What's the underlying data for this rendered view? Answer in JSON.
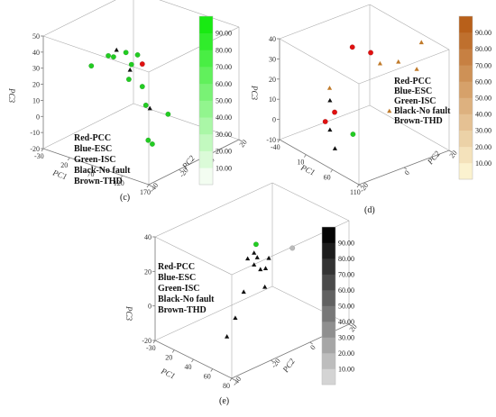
{
  "chart_data": [
    {
      "type": "scatter",
      "panel_label": "(c)",
      "axes": {
        "x_label": "PC1",
        "y_label": "PC2",
        "z_label": "PC3"
      },
      "x_ticks": [
        "-30",
        "20",
        "70",
        "120",
        "170"
      ],
      "y_ticks": [
        "-40",
        "-20",
        "0",
        "20"
      ],
      "z_ticks": [
        "-20",
        "-10",
        "0",
        "10",
        "20",
        "30",
        "40",
        "50"
      ],
      "colorbar": {
        "ticks": [
          "10.00",
          "20.00",
          "30.00",
          "40.00",
          "50.00",
          "60.00",
          "70.00",
          "80.00",
          "90.00"
        ],
        "low": "#f3fdf1",
        "high": "#18ea12"
      },
      "legend": [
        "Red-PCC",
        "Blue-ESC",
        "Green-ISC",
        "Black-No fault",
        "Brown-THD"
      ],
      "points": [
        {
          "x": 60,
          "y": -20,
          "z": 48,
          "c": "black",
          "m": "tri"
        },
        {
          "x": 90,
          "y": -25,
          "z": 52,
          "c": "green",
          "m": "dot"
        },
        {
          "x": 95,
          "y": -18,
          "z": 48,
          "c": "green",
          "m": "dot"
        },
        {
          "x": 110,
          "y": -30,
          "z": 45,
          "c": "black",
          "m": "tri"
        },
        {
          "x": 120,
          "y": -35,
          "z": 42,
          "c": "green",
          "m": "dot"
        },
        {
          "x": 20,
          "y": -10,
          "z": 35,
          "c": "green",
          "m": "dot"
        },
        {
          "x": 25,
          "y": -8,
          "z": 34,
          "c": "green",
          "m": "dot"
        },
        {
          "x": 60,
          "y": 0,
          "z": 30,
          "c": "red",
          "m": "dot"
        },
        {
          "x": 0,
          "y": -15,
          "z": 28,
          "c": "green",
          "m": "dot"
        },
        {
          "x": 15,
          "y": 10,
          "z": 20,
          "c": "green",
          "m": "dot"
        },
        {
          "x": 140,
          "y": -30,
          "z": 25,
          "c": "green",
          "m": "dot"
        },
        {
          "x": 60,
          "y": 0,
          "z": 15,
          "c": "green",
          "m": "dot"
        },
        {
          "x": 50,
          "y": 10,
          "z": -5,
          "c": "black",
          "m": "tri"
        },
        {
          "x": 120,
          "y": -20,
          "z": -5,
          "c": "green",
          "m": "dot"
        },
        {
          "x": 140,
          "y": -25,
          "z": -3,
          "c": "green",
          "m": "dot"
        },
        {
          "x": 60,
          "y": 20,
          "z": -12,
          "c": "green",
          "m": "dot"
        }
      ]
    },
    {
      "type": "scatter",
      "panel_label": "(d)",
      "axes": {
        "x_label": "PC1",
        "y_label": "PC2",
        "z_label": "PC3"
      },
      "x_ticks": [
        "-40",
        "10",
        "60",
        "110"
      ],
      "y_ticks": [
        "-20",
        "0",
        "20"
      ],
      "z_ticks": [
        "-10",
        "0",
        "10",
        "20",
        "30",
        "40"
      ],
      "colorbar": {
        "ticks": [
          "10.00",
          "20.00",
          "30.00",
          "40.00",
          "50.00",
          "60.00",
          "70.00",
          "80.00",
          "90.00"
        ],
        "low": "#fbf2cf",
        "high": "#b8601a"
      },
      "legend": [
        "Red-PCC",
        "Blue-ESC",
        "Green-ISC",
        "Black-No fault",
        "Brown-THD"
      ],
      "points": [
        {
          "x": 90,
          "y": 20,
          "z": 40,
          "c": "brown",
          "m": "tri"
        },
        {
          "x": 0,
          "y": 5,
          "z": 30,
          "c": "red",
          "m": "dot"
        },
        {
          "x": 20,
          "y": 10,
          "z": 28,
          "c": "red",
          "m": "dot"
        },
        {
          "x": 40,
          "y": 10,
          "z": 25,
          "c": "brown",
          "m": "tri"
        },
        {
          "x": 60,
          "y": 15,
          "z": 27,
          "c": "brown",
          "m": "tri"
        },
        {
          "x": 80,
          "y": 20,
          "z": 24,
          "c": "brown",
          "m": "tri"
        },
        {
          "x": -10,
          "y": -5,
          "z": 10,
          "c": "brown",
          "m": "tri"
        },
        {
          "x": 10,
          "y": -10,
          "z": 8,
          "c": "black",
          "m": "tri"
        },
        {
          "x": 20,
          "y": -10,
          "z": 3,
          "c": "red",
          "m": "dot"
        },
        {
          "x": 60,
          "y": 10,
          "z": 2,
          "c": "brown",
          "m": "tri"
        },
        {
          "x": 0,
          "y": -10,
          "z": -5,
          "c": "red",
          "m": "dot"
        },
        {
          "x": 10,
          "y": -10,
          "z": -8,
          "c": "black",
          "m": "tri"
        },
        {
          "x": 40,
          "y": -5,
          "z": -8,
          "c": "green",
          "m": "dot"
        },
        {
          "x": 40,
          "y": -15,
          "z": -12,
          "c": "black",
          "m": "tri"
        }
      ]
    },
    {
      "type": "scatter",
      "panel_label": "(e)",
      "axes": {
        "x_label": "PC1",
        "y_label": "PC2",
        "z_label": "PC3"
      },
      "x_ticks": [
        "-30",
        "20",
        "40",
        "60",
        "80"
      ],
      "y_ticks": [
        "-40",
        "-20",
        "0",
        "20"
      ],
      "z_ticks": [
        "-20",
        "0",
        "20",
        "40"
      ],
      "colorbar": {
        "ticks": [
          "10.00",
          "20.00",
          "30.00",
          "40.00",
          "50.00",
          "60.00",
          "70.00",
          "80.00",
          "90.00"
        ],
        "low": "#d4d4d4",
        "high": "#050505"
      },
      "legend": [
        "Red-PCC",
        "Blue-ESC",
        "Green-ISC",
        "Black-No fault",
        "Brown-THD"
      ],
      "points": [
        {
          "x": 80,
          "y": 0,
          "z": 40,
          "c": "gray",
          "m": "dot"
        },
        {
          "x": 10,
          "y": 5,
          "z": 25,
          "c": "green",
          "m": "dot"
        },
        {
          "x": 20,
          "y": 0,
          "z": 24,
          "c": "black",
          "m": "tri"
        },
        {
          "x": 25,
          "y": 0,
          "z": 22,
          "c": "black",
          "m": "tri"
        },
        {
          "x": 30,
          "y": 5,
          "z": 20,
          "c": "black",
          "m": "tri"
        },
        {
          "x": 10,
          "y": 0,
          "z": 18,
          "c": "black",
          "m": "tri"
        },
        {
          "x": 20,
          "y": 0,
          "z": 16,
          "c": "black",
          "m": "tri"
        },
        {
          "x": 30,
          "y": 0,
          "z": 15,
          "c": "black",
          "m": "tri"
        },
        {
          "x": 25,
          "y": 5,
          "z": 12,
          "c": "black",
          "m": "tri"
        },
        {
          "x": 50,
          "y": -5,
          "z": 10,
          "c": "black",
          "m": "tri"
        },
        {
          "x": 30,
          "y": -10,
          "z": 5,
          "c": "black",
          "m": "tri"
        },
        {
          "x": 30,
          "y": -15,
          "z": -10,
          "c": "black",
          "m": "tri"
        },
        {
          "x": 30,
          "y": -20,
          "z": -20,
          "c": "black",
          "m": "tri"
        }
      ]
    }
  ]
}
